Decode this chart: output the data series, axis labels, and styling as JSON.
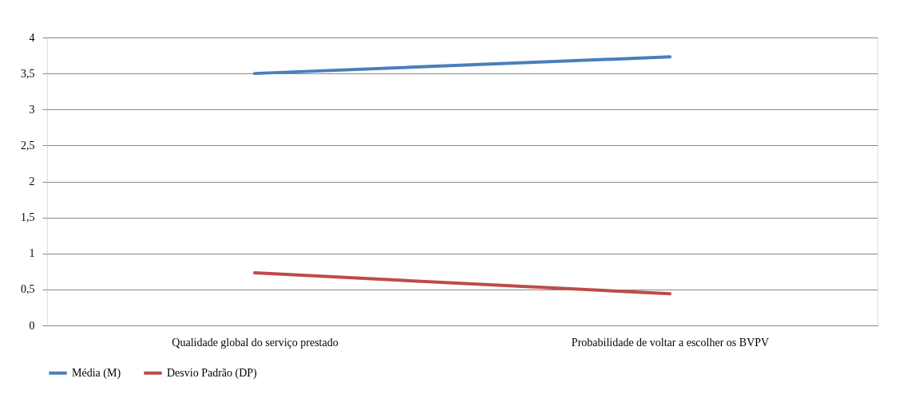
{
  "chart_data": {
    "type": "line",
    "categories": [
      "Qualidade global do serviço prestado",
      "Probabilidade de voltar a escolher os BVPV"
    ],
    "series": [
      {
        "name": "Média (M)",
        "color": "#4a7ebb",
        "values": [
          3.5,
          3.73
        ]
      },
      {
        "name": "Desvio Padrão (DP)",
        "color": "#be4b48",
        "values": [
          0.73,
          0.44
        ]
      }
    ],
    "ylim": [
      0,
      4
    ],
    "yticks": [
      0,
      {
        "value": 0.5,
        "label": "0,5"
      },
      1,
      {
        "value": 1.5,
        "label": "1,5"
      },
      2,
      {
        "value": 2.5,
        "label": "2,5"
      },
      3,
      {
        "value": 3.5,
        "label": "3,5"
      },
      4
    ],
    "grid": "y",
    "legend": "bottom",
    "marker": "none",
    "line_style": "solid"
  }
}
